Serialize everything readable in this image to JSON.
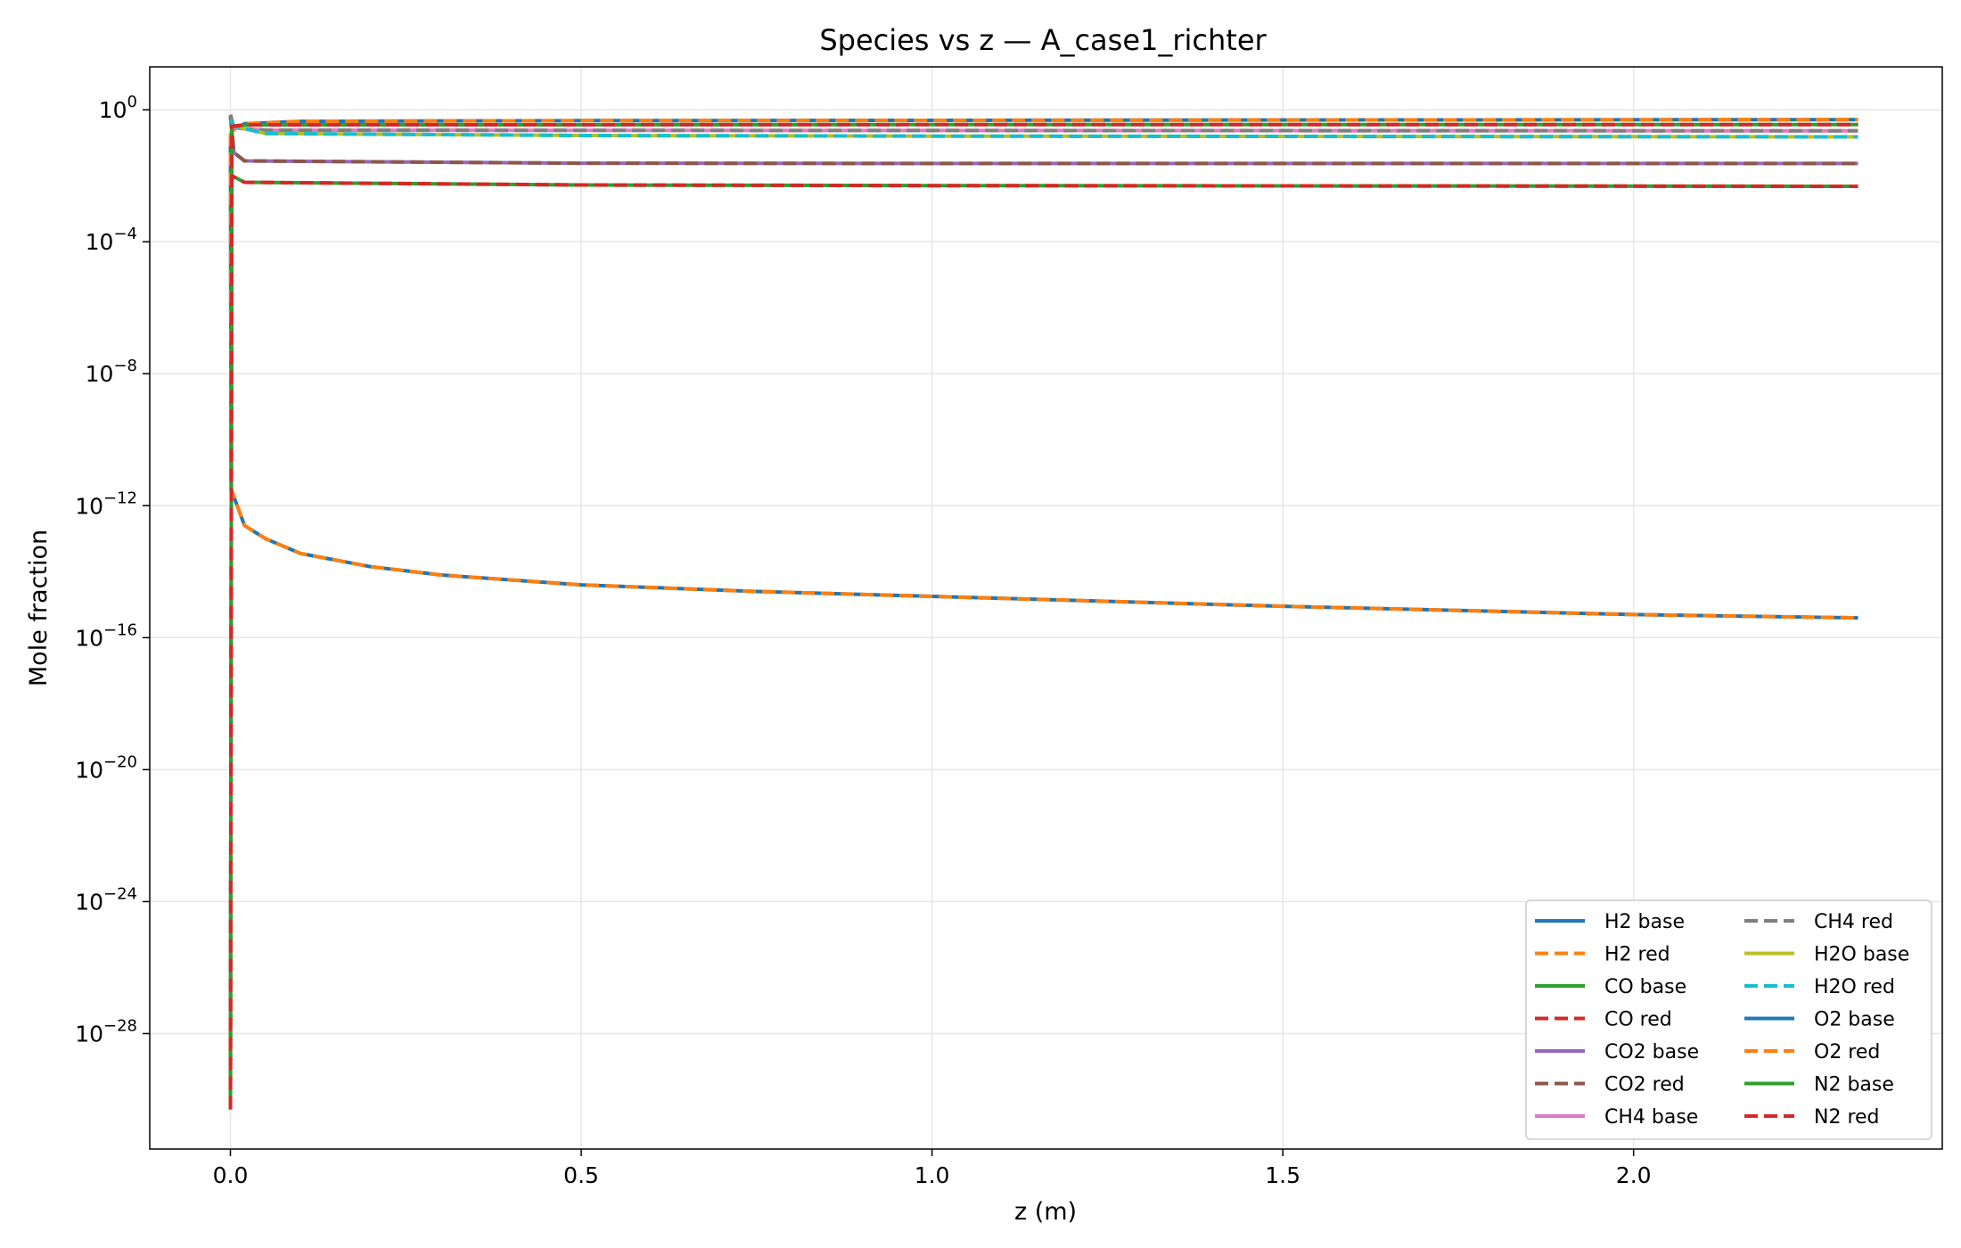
{
  "chart_data": {
    "type": "line",
    "title": "Species vs z — A_case1_richter",
    "xlabel": "z (m)",
    "ylabel": "Mole fraction",
    "xlim": [
      -0.115,
      2.44
    ],
    "ylim_log10": [
      -31.5,
      1.3
    ],
    "y_scale": "log",
    "grid": true,
    "legend_position": "lower-right",
    "legend_columns": 2,
    "x_ticks": [
      {
        "value": 0.0,
        "label": "0.0"
      },
      {
        "value": 0.5,
        "label": "0.5"
      },
      {
        "value": 1.0,
        "label": "1.0"
      },
      {
        "value": 1.5,
        "label": "1.5"
      },
      {
        "value": 2.0,
        "label": "2.0"
      }
    ],
    "y_ticks": [
      {
        "exp": 0,
        "base": "10",
        "sup": "0"
      },
      {
        "exp": -4,
        "base": "10",
        "sup": "−4"
      },
      {
        "exp": -8,
        "base": "10",
        "sup": "−8"
      },
      {
        "exp": -12,
        "base": "10",
        "sup": "−12"
      },
      {
        "exp": -16,
        "base": "10",
        "sup": "−16"
      },
      {
        "exp": -20,
        "base": "10",
        "sup": "−20"
      },
      {
        "exp": -24,
        "base": "10",
        "sup": "−24"
      },
      {
        "exp": -28,
        "base": "10",
        "sup": "−28"
      }
    ],
    "series": [
      {
        "name": "H2 base",
        "color": "#1f77b4",
        "dash": false,
        "points": [
          [
            0,
            -0.7
          ],
          [
            0.005,
            -0.6
          ],
          [
            0.02,
            -0.42
          ],
          [
            0.1,
            -0.35
          ],
          [
            0.5,
            -0.33
          ],
          [
            1.0,
            -0.32
          ],
          [
            1.5,
            -0.31
          ],
          [
            2.32,
            -0.3
          ]
        ]
      },
      {
        "name": "H2 red",
        "color": "#ff7f0e",
        "dash": true,
        "points": [
          [
            0,
            -0.7
          ],
          [
            0.005,
            -0.6
          ],
          [
            0.02,
            -0.42
          ],
          [
            0.1,
            -0.35
          ],
          [
            0.5,
            -0.33
          ],
          [
            1.0,
            -0.32
          ],
          [
            1.5,
            -0.31
          ],
          [
            2.32,
            -0.3
          ]
        ]
      },
      {
        "name": "CO base",
        "color": "#2ca02c",
        "dash": false,
        "points": [
          [
            0,
            -30.2
          ],
          [
            0.002,
            -2.0
          ],
          [
            0.02,
            -2.2
          ],
          [
            0.5,
            -2.28
          ],
          [
            1.0,
            -2.3
          ],
          [
            2.32,
            -2.32
          ]
        ]
      },
      {
        "name": "CO red",
        "color": "#d62728",
        "dash": true,
        "points": [
          [
            0,
            -30.2
          ],
          [
            0.002,
            -2.0
          ],
          [
            0.02,
            -2.2
          ],
          [
            0.5,
            -2.28
          ],
          [
            1.0,
            -2.3
          ],
          [
            2.32,
            -2.32
          ]
        ]
      },
      {
        "name": "CO2 base",
        "color": "#9467bd",
        "dash": false,
        "points": [
          [
            0,
            -0.2
          ],
          [
            0.005,
            -1.3
          ],
          [
            0.02,
            -1.55
          ],
          [
            0.5,
            -1.62
          ],
          [
            1.0,
            -1.63
          ],
          [
            2.32,
            -1.63
          ]
        ]
      },
      {
        "name": "CO2 red",
        "color": "#8c564b",
        "dash": true,
        "points": [
          [
            0,
            -0.2
          ],
          [
            0.005,
            -1.3
          ],
          [
            0.02,
            -1.55
          ],
          [
            0.5,
            -1.62
          ],
          [
            1.0,
            -1.63
          ],
          [
            2.32,
            -1.63
          ]
        ]
      },
      {
        "name": "CH4 base",
        "color": "#e377c2",
        "dash": false,
        "points": [
          [
            0,
            -0.15
          ],
          [
            0.005,
            -0.55
          ],
          [
            0.05,
            -0.62
          ],
          [
            1.0,
            -0.63
          ],
          [
            2.32,
            -0.64
          ]
        ]
      },
      {
        "name": "CH4 red",
        "color": "#7f7f7f",
        "dash": true,
        "points": [
          [
            0,
            -0.15
          ],
          [
            0.005,
            -0.55
          ],
          [
            0.05,
            -0.62
          ],
          [
            1.0,
            -0.63
          ],
          [
            2.32,
            -0.64
          ]
        ]
      },
      {
        "name": "H2O base",
        "color": "#bcbd22",
        "dash": false,
        "points": [
          [
            0,
            -0.3
          ],
          [
            0.005,
            -0.5
          ],
          [
            0.05,
            -0.72
          ],
          [
            0.5,
            -0.78
          ],
          [
            1.0,
            -0.8
          ],
          [
            2.32,
            -0.82
          ]
        ]
      },
      {
        "name": "H2O red",
        "color": "#17becf",
        "dash": true,
        "points": [
          [
            0,
            -0.3
          ],
          [
            0.005,
            -0.5
          ],
          [
            0.05,
            -0.72
          ],
          [
            0.5,
            -0.78
          ],
          [
            1.0,
            -0.8
          ],
          [
            2.32,
            -0.82
          ]
        ]
      },
      {
        "name": "O2 base",
        "color": "#1f77b4",
        "dash": false,
        "points": [
          [
            0,
            -0.7
          ],
          [
            0.001,
            -11.5
          ],
          [
            0.02,
            -12.6
          ],
          [
            0.05,
            -13.0
          ],
          [
            0.1,
            -13.45
          ],
          [
            0.2,
            -13.85
          ],
          [
            0.3,
            -14.1
          ],
          [
            0.5,
            -14.4
          ],
          [
            0.75,
            -14.6
          ],
          [
            1.0,
            -14.75
          ],
          [
            1.5,
            -15.05
          ],
          [
            2.0,
            -15.3
          ],
          [
            2.32,
            -15.4
          ]
        ]
      },
      {
        "name": "O2 red",
        "color": "#ff7f0e",
        "dash": true,
        "points": [
          [
            0,
            -0.7
          ],
          [
            0.001,
            -11.5
          ],
          [
            0.02,
            -12.6
          ],
          [
            0.05,
            -13.0
          ],
          [
            0.1,
            -13.45
          ],
          [
            0.2,
            -13.85
          ],
          [
            0.3,
            -14.1
          ],
          [
            0.5,
            -14.4
          ],
          [
            0.75,
            -14.6
          ],
          [
            1.0,
            -14.75
          ],
          [
            1.5,
            -15.05
          ],
          [
            2.0,
            -15.3
          ],
          [
            2.32,
            -15.4
          ]
        ]
      },
      {
        "name": "N2 base",
        "color": "#2ca02c",
        "dash": false,
        "points": [
          [
            0,
            -30.3
          ],
          [
            0.002,
            -0.5
          ],
          [
            0.02,
            -0.46
          ],
          [
            1.0,
            -0.45
          ],
          [
            2.32,
            -0.45
          ]
        ]
      },
      {
        "name": "N2 red",
        "color": "#d62728",
        "dash": true,
        "points": [
          [
            0,
            -30.3
          ],
          [
            0.002,
            -0.5
          ],
          [
            0.02,
            -0.46
          ],
          [
            1.0,
            -0.45
          ],
          [
            2.32,
            -0.45
          ]
        ]
      }
    ]
  }
}
